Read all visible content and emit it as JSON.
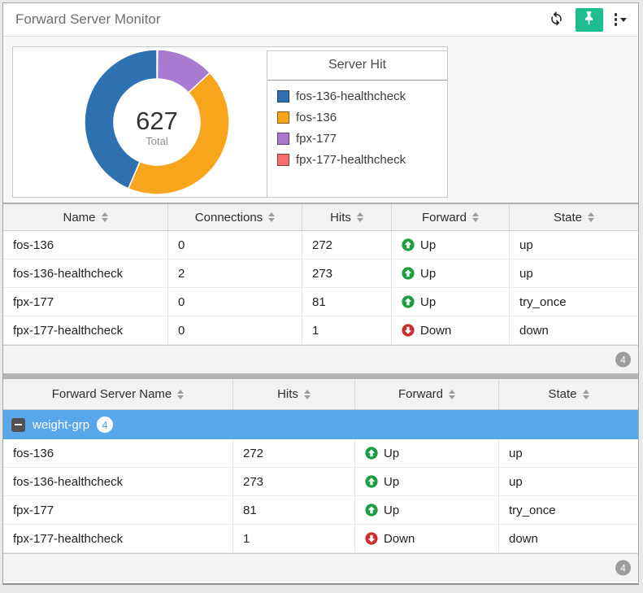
{
  "header": {
    "title": "Forward Server Monitor",
    "refresh_icon": "refresh",
    "pin_icon": "pushpin",
    "menu_icon": "kebab-vertical-with-caret"
  },
  "chart_data": {
    "type": "pie",
    "donut": true,
    "title": "Server Hit",
    "center_total": "627",
    "center_label": "Total",
    "legend_position": "right",
    "start_angle_deg": 0,
    "direction": "clockwise",
    "draw_order": "reversed-legend-order",
    "series": [
      {
        "name": "fos-136-healthcheck",
        "value": 273,
        "color": "#2e71b1"
      },
      {
        "name": "fos-136",
        "value": 272,
        "color": "#f7a51c"
      },
      {
        "name": "fpx-177",
        "value": 81,
        "color": "#a87ad0"
      },
      {
        "name": "fpx-177-healthcheck",
        "value": 1,
        "color": "#f86e6e"
      }
    ]
  },
  "servers_table": {
    "columns": [
      "Name",
      "Connections",
      "Hits",
      "Forward",
      "State"
    ],
    "rows": [
      {
        "name": "fos-136",
        "connections": "0",
        "hits": "272",
        "forward": "Up",
        "forward_dir": "up",
        "state": "up"
      },
      {
        "name": "fos-136-healthcheck",
        "connections": "2",
        "hits": "273",
        "forward": "Up",
        "forward_dir": "up",
        "state": "up"
      },
      {
        "name": "fpx-177",
        "connections": "0",
        "hits": "81",
        "forward": "Up",
        "forward_dir": "up",
        "state": "try_once"
      },
      {
        "name": "fpx-177-healthcheck",
        "connections": "0",
        "hits": "1",
        "forward": "Down",
        "forward_dir": "down",
        "state": "down"
      }
    ],
    "footer_count": "4"
  },
  "groups_table": {
    "columns": [
      "Forward Server Name",
      "Hits",
      "Forward",
      "State"
    ],
    "group": {
      "name": "weight-grp",
      "count": "4",
      "expanded": true,
      "collapse_icon": "minus-square"
    },
    "rows": [
      {
        "name": "fos-136",
        "hits": "272",
        "forward": "Up",
        "forward_dir": "up",
        "state": "up"
      },
      {
        "name": "fos-136-healthcheck",
        "hits": "273",
        "forward": "Up",
        "forward_dir": "up",
        "state": "up"
      },
      {
        "name": "fpx-177",
        "hits": "81",
        "forward": "Up",
        "forward_dir": "up",
        "state": "try_once"
      },
      {
        "name": "fpx-177-healthcheck",
        "hits": "1",
        "forward": "Down",
        "forward_dir": "down",
        "state": "down"
      }
    ],
    "footer_count": "4"
  },
  "icons": {
    "up": "arrow-circle-up",
    "down": "arrow-circle-down",
    "sort": "sort-arrows"
  },
  "colors": {
    "up": "#1a9e3f",
    "down": "#c9302c",
    "group_row": "#58a7ea",
    "group_count_text": "#4a9fe8",
    "count_badge": "#9c9c9c",
    "pin_button": "#1ebe91"
  }
}
